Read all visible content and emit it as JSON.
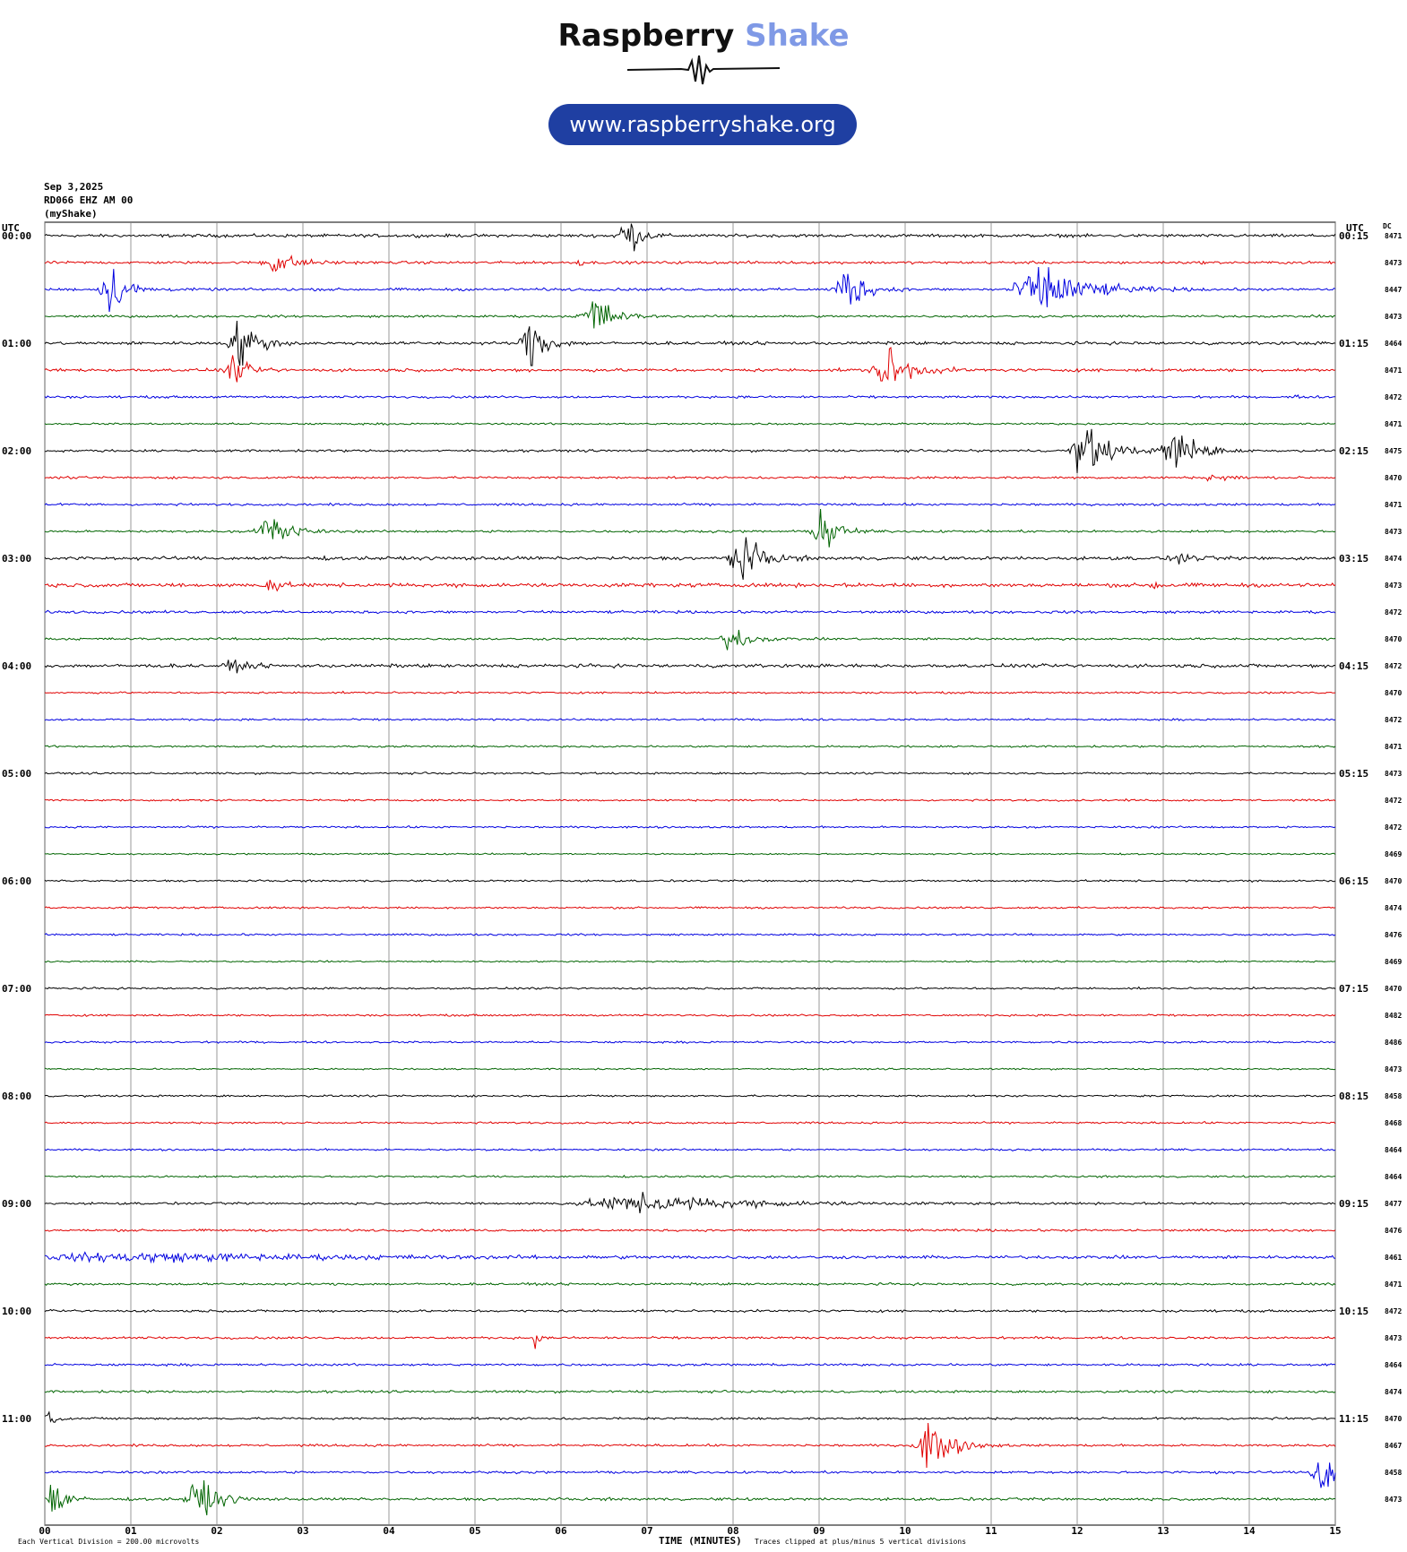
{
  "logo": {
    "word1": "Raspberry",
    "word2": "Shake",
    "url": "www.raspberryshake.org"
  },
  "header": {
    "date": "Sep 3,2025",
    "station": "RD066 EHZ AM 00",
    "source": "(myShake)"
  },
  "labels": {
    "utc_left": "UTC",
    "utc_right": "UTC",
    "dc": "DC"
  },
  "footer": {
    "division": "Each Vertical Division =  200.00 microvolts",
    "xlabel": "TIME (MINUTES)",
    "clip_note": "Traces clipped at plus/minus 5 vertical divisions"
  },
  "colors": {
    "cycle": [
      "#000000",
      "#e00000",
      "#0000e0",
      "#006400"
    ],
    "grid": "#808080"
  },
  "chart_data": {
    "type": "line",
    "title": "",
    "xlabel": "TIME (MINUTES)",
    "xlim": [
      0,
      15
    ],
    "x_ticks": [
      "00",
      "01",
      "02",
      "03",
      "04",
      "05",
      "06",
      "07",
      "08",
      "09",
      "10",
      "11",
      "12",
      "13",
      "14",
      "15"
    ],
    "left_labels": [
      "00:00",
      "",
      "",
      "",
      "01:00",
      "",
      "",
      "",
      "02:00",
      "",
      "",
      "",
      "03:00",
      "",
      "",
      "",
      "04:00",
      "",
      "",
      "",
      "05:00",
      "",
      "",
      "",
      "06:00",
      "",
      "",
      "",
      "07:00",
      "",
      "",
      "",
      "08:00",
      "",
      "",
      "",
      "09:00",
      "",
      "",
      "",
      "10:00",
      "",
      "",
      "",
      "11:00",
      "",
      "",
      ""
    ],
    "right_labels": [
      "00:15",
      "",
      "",
      "",
      "01:15",
      "",
      "",
      "",
      "02:15",
      "",
      "",
      "",
      "03:15",
      "",
      "",
      "",
      "04:15",
      "",
      "",
      "",
      "05:15",
      "",
      "",
      "",
      "06:15",
      "",
      "",
      "",
      "07:15",
      "",
      "",
      "",
      "08:15",
      "",
      "",
      "",
      "09:15",
      "",
      "",
      "",
      "10:15",
      "",
      "",
      "",
      "11:15",
      "",
      "",
      ""
    ],
    "dc_values": [
      "8471",
      "8473",
      "8447",
      "8473",
      "8464",
      "8471",
      "8472",
      "8471",
      "8475",
      "8470",
      "8471",
      "8473",
      "8474",
      "8473",
      "8472",
      "8470",
      "8472",
      "8470",
      "8472",
      "8471",
      "8473",
      "8472",
      "8472",
      "8469",
      "8470",
      "8474",
      "8476",
      "8469",
      "8470",
      "8482",
      "8486",
      "8473",
      "8458",
      "8468",
      "8464",
      "8464",
      "8477",
      "8476",
      "8461",
      "8471",
      "8472",
      "8473",
      "8464",
      "8474",
      "8470",
      "8467",
      "8458",
      "8473"
    ],
    "noise_level": [
      0.8,
      0.7,
      0.7,
      0.6,
      0.8,
      0.8,
      0.6,
      0.5,
      0.6,
      0.6,
      0.6,
      0.6,
      0.9,
      1.0,
      0.7,
      0.6,
      0.9,
      0.5,
      0.5,
      0.5,
      0.5,
      0.5,
      0.5,
      0.4,
      0.5,
      0.5,
      0.5,
      0.4,
      0.5,
      0.5,
      0.5,
      0.4,
      0.5,
      0.5,
      0.5,
      0.5,
      0.6,
      0.6,
      0.8,
      0.6,
      0.6,
      0.6,
      0.6,
      0.6,
      0.6,
      0.6,
      0.6,
      0.7
    ],
    "events": [
      {
        "line": 0,
        "t": 6.75,
        "amp": 5.0,
        "dur": 0.35
      },
      {
        "line": 1,
        "t": 2.7,
        "amp": 2.2,
        "dur": 0.6
      },
      {
        "line": 1,
        "t": 6.2,
        "amp": 0.7,
        "dur": 0.15
      },
      {
        "line": 2,
        "t": 0.78,
        "amp": 5.0,
        "dur": 0.45
      },
      {
        "line": 2,
        "t": 9.32,
        "amp": 5.0,
        "dur": 0.5
      },
      {
        "line": 2,
        "t": 11.6,
        "amp": 5.0,
        "dur": 1.2
      },
      {
        "line": 3,
        "t": 6.38,
        "amp": 5.0,
        "dur": 0.5
      },
      {
        "line": 4,
        "t": 2.28,
        "amp": 5.0,
        "dur": 0.5
      },
      {
        "line": 4,
        "t": 5.65,
        "amp": 5.0,
        "dur": 0.45
      },
      {
        "line": 5,
        "t": 2.2,
        "amp": 2.5,
        "dur": 0.4
      },
      {
        "line": 5,
        "t": 9.8,
        "amp": 5.0,
        "dur": 0.6
      },
      {
        "line": 6,
        "t": 14.5,
        "amp": 0.6,
        "dur": 0.1
      },
      {
        "line": 8,
        "t": 12.1,
        "amp": 5.0,
        "dur": 0.7
      },
      {
        "line": 8,
        "t": 13.15,
        "amp": 5.0,
        "dur": 0.6
      },
      {
        "line": 9,
        "t": 13.6,
        "amp": 0.6,
        "dur": 0.5
      },
      {
        "line": 11,
        "t": 2.62,
        "amp": 5.0,
        "dur": 0.5
      },
      {
        "line": 11,
        "t": 9.05,
        "amp": 5.0,
        "dur": 0.4
      },
      {
        "line": 12,
        "t": 8.1,
        "amp": 5.0,
        "dur": 0.55
      },
      {
        "line": 12,
        "t": 13.2,
        "amp": 1.0,
        "dur": 0.4
      },
      {
        "line": 13,
        "t": 2.62,
        "amp": 3.0,
        "dur": 0.2
      },
      {
        "line": 13,
        "t": 12.9,
        "amp": 0.7,
        "dur": 0.3
      },
      {
        "line": 15,
        "t": 8.0,
        "amp": 2.5,
        "dur": 0.5
      },
      {
        "line": 16,
        "t": 2.2,
        "amp": 1.0,
        "dur": 0.4
      },
      {
        "line": 36,
        "t": 7.0,
        "amp": 1.6,
        "dur": 2.8
      },
      {
        "line": 38,
        "t": 1.2,
        "amp": 0.8,
        "dur": 5.0
      },
      {
        "line": 41,
        "t": 5.7,
        "amp": 5.0,
        "dur": 0.06
      },
      {
        "line": 44,
        "t": 0.05,
        "amp": 2.0,
        "dur": 0.2
      },
      {
        "line": 45,
        "t": 10.3,
        "amp": 5.0,
        "dur": 0.6
      },
      {
        "line": 46,
        "t": 14.85,
        "amp": 5.0,
        "dur": 0.5
      },
      {
        "line": 46,
        "t": 13.6,
        "amp": 1.3,
        "dur": 0.05
      },
      {
        "line": 47,
        "t": 0.1,
        "amp": 5.0,
        "dur": 0.3
      },
      {
        "line": 47,
        "t": 1.8,
        "amp": 5.0,
        "dur": 0.5
      }
    ]
  }
}
